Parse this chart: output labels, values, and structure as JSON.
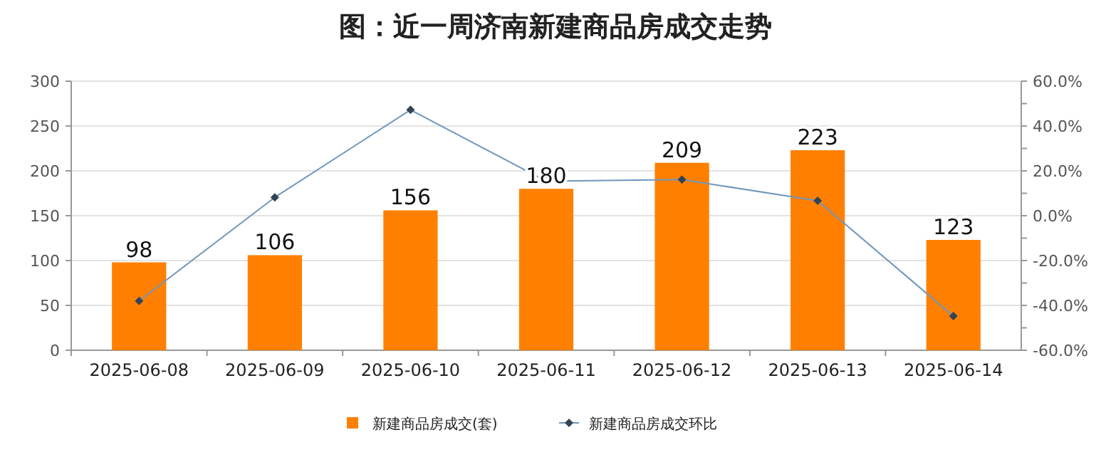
{
  "chart_data": {
    "type": "bar",
    "title": "图：近一周济南新建商品房成交走势",
    "categories": [
      "2025-06-08",
      "2025-06-09",
      "2025-06-10",
      "2025-06-11",
      "2025-06-12",
      "2025-06-13",
      "2025-06-14"
    ],
    "series": [
      {
        "name": "新建商品房成交(套)",
        "color": "#ff8000",
        "values": [
          98,
          106,
          156,
          180,
          209,
          223,
          123
        ],
        "value_labels": [
          "98",
          "106",
          "156",
          "180",
          "209",
          "223",
          "123"
        ]
      },
      {
        "name": "新建商品房成交环比",
        "type": "line",
        "axis": "y2",
        "color": "#6f97bd",
        "marker": "diamond",
        "line_style": "solid",
        "values": [
          -38,
          8.2,
          47.2,
          15.4,
          16.1,
          6.7,
          -44.8
        ]
      }
    ],
    "ylim": [
      0,
      300
    ],
    "yticks": [
      0,
      50,
      100,
      150,
      200,
      250,
      300
    ],
    "y2lim": [
      -60,
      60
    ],
    "y2ticks": [
      {
        "value": -60,
        "label": "-60.0%"
      },
      {
        "value": -50,
        "label": null
      },
      {
        "value": -40,
        "label": "-40.0%"
      },
      {
        "value": -30,
        "label": null
      },
      {
        "value": -20,
        "label": "-20.0%"
      },
      {
        "value": -10,
        "label": null
      },
      {
        "value": 0,
        "label": "0.0%"
      },
      {
        "value": 10,
        "label": null
      },
      {
        "value": 20,
        "label": "20.0%"
      },
      {
        "value": 30,
        "label": null
      },
      {
        "value": 40,
        "label": "40.0%"
      },
      {
        "value": 50,
        "label": null
      },
      {
        "value": 60,
        "label": "60.0%"
      }
    ],
    "grid": "y",
    "legend": "bottom"
  }
}
